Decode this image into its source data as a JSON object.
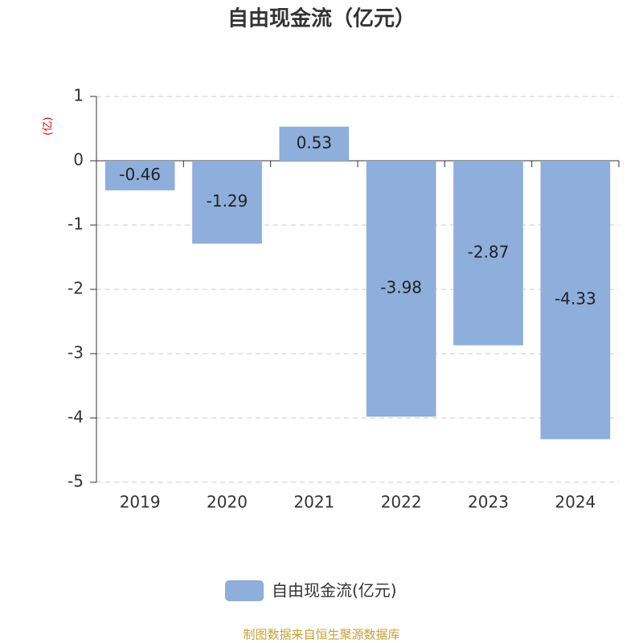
{
  "chart_data": {
    "type": "bar",
    "title": "自由现金流（亿元）",
    "y_label": "(亿)",
    "categories": [
      "2019",
      "2020",
      "2021",
      "2022",
      "2023",
      "2024"
    ],
    "series": [
      {
        "name": "自由现金流(亿元)",
        "color": "#8eaedb",
        "values": [
          -0.46,
          -1.29,
          0.53,
          -3.98,
          -2.87,
          -4.33
        ]
      }
    ],
    "ylim": [
      -5,
      1
    ],
    "yticks": [
      -5,
      -4,
      -3,
      -2,
      -1,
      0,
      1
    ],
    "grid": true,
    "source": "制图数据来自恒生聚源数据库"
  }
}
